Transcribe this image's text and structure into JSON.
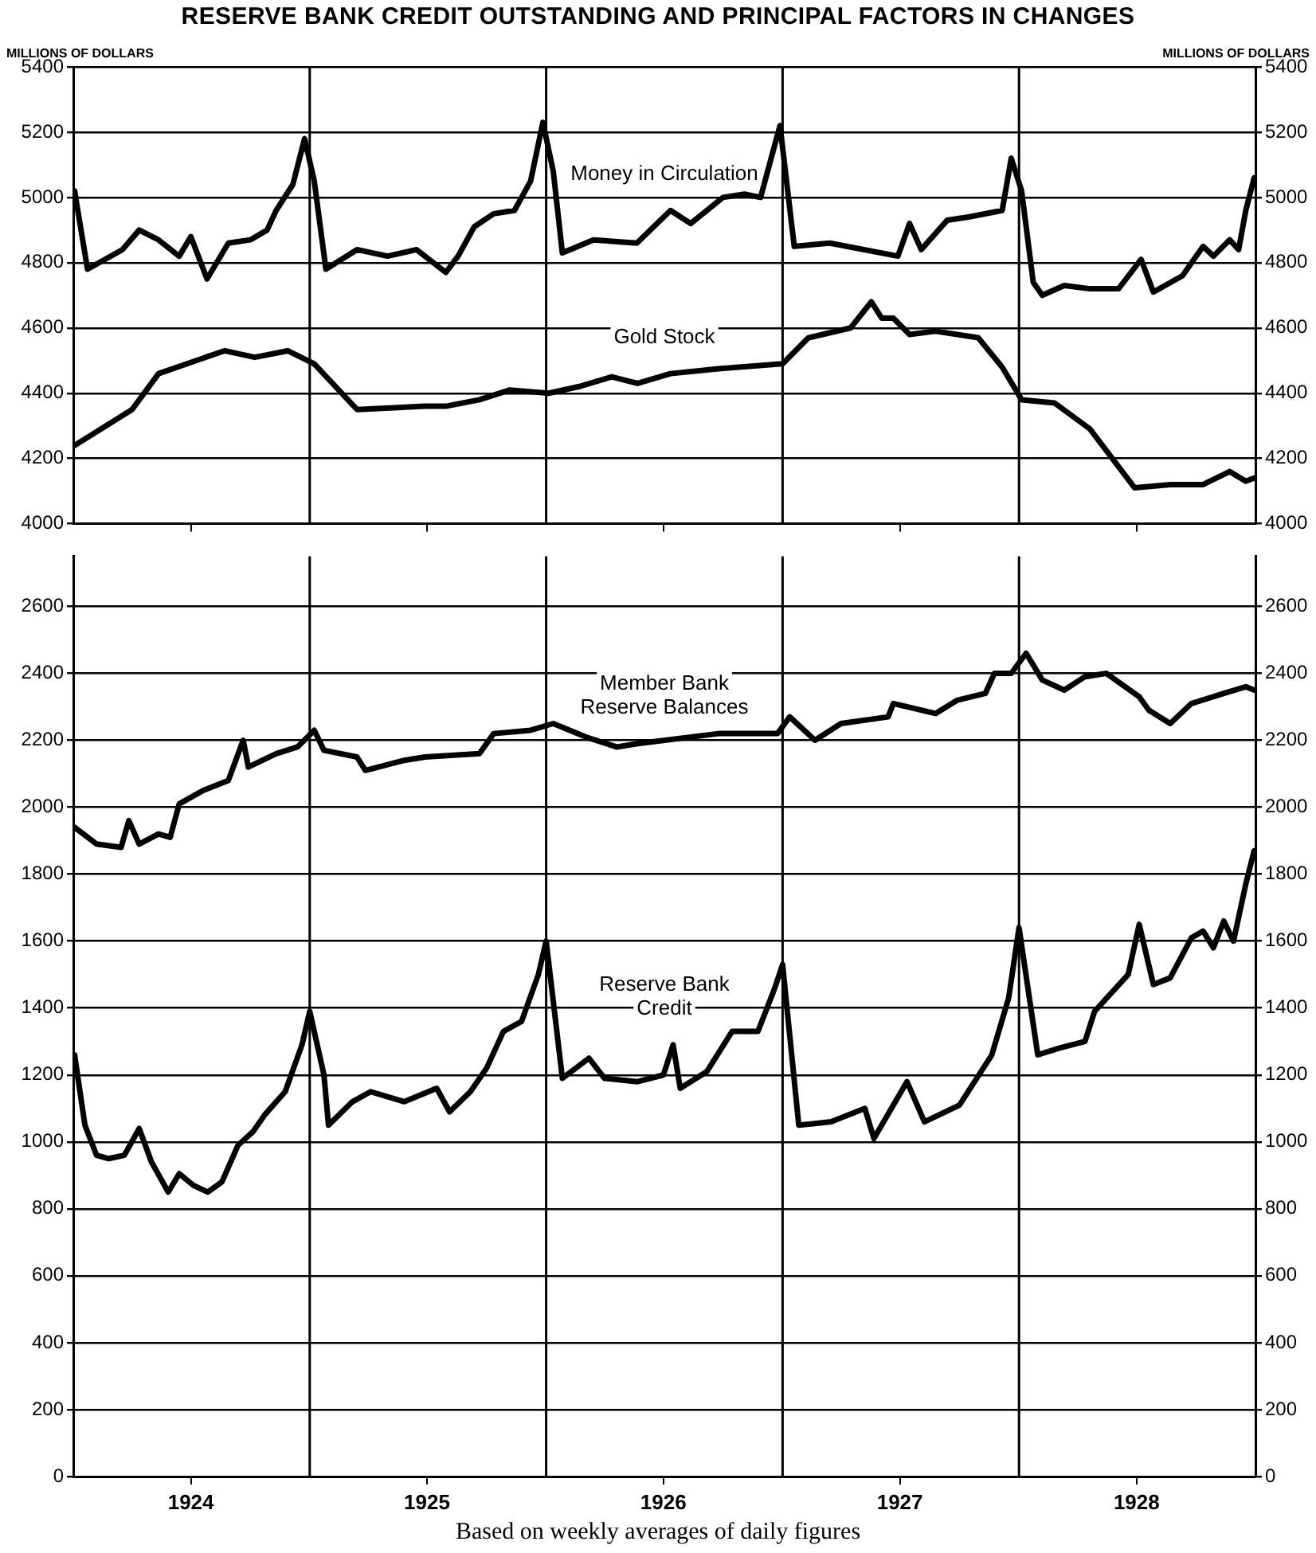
{
  "chart_data": [
    {
      "type": "line",
      "title": "RESERVE BANK CREDIT OUTSTANDING AND PRINCIPAL FACTORS IN CHANGES",
      "ylabel": "MILLIONS OF DOLLARS",
      "y2label": "MILLIONS OF DOLLARS",
      "xlim": [
        "1924-01-01",
        "1929-01-01"
      ],
      "xticks": [
        {
          "value": "1924-07-01",
          "label": null
        },
        {
          "value": "1925-07-01",
          "label": null
        },
        {
          "value": "1926-07-01",
          "label": null
        },
        {
          "value": "1927-07-01",
          "label": null
        },
        {
          "value": "1928-07-01",
          "label": null
        }
      ],
      "ylim": [
        4000,
        5400
      ],
      "yticks": [
        4000,
        4200,
        4400,
        4600,
        4800,
        5000,
        5200,
        5400
      ],
      "y2lim": [
        4000,
        5400
      ],
      "y2ticks": [
        4000,
        4200,
        4400,
        4600,
        4800,
        5000,
        5200,
        5400
      ],
      "tick_labels": "y",
      "grid": "y",
      "marker": "none",
      "line_style": "solid",
      "legend": false,
      "ref_lines": [
        {
          "axis": "x",
          "value": "1925-01-01",
          "color": "#000000"
        },
        {
          "axis": "x",
          "value": "1926-01-01",
          "color": "#000000"
        },
        {
          "axis": "x",
          "value": "1927-01-01",
          "color": "#000000"
        },
        {
          "axis": "x",
          "value": "1928-01-01",
          "color": "#000000"
        }
      ],
      "series": [
        {
          "name": "Money in Circulation",
          "color": "#000000",
          "x": [
            "1924-01-03",
            "1924-01-23",
            "1924-03-17",
            "1924-04-12",
            "1924-05-12",
            "1924-06-13",
            "1924-07-01",
            "1924-07-26",
            "1924-08-28",
            "1924-10-01",
            "1924-10-27",
            "1924-11-10",
            "1924-12-06",
            "1924-12-24",
            "1925-01-08",
            "1925-01-26",
            "1925-03-15",
            "1925-05-01",
            "1925-06-15",
            "1925-07-30",
            "1925-08-18",
            "1925-09-12",
            "1925-10-12",
            "1925-11-13",
            "1925-12-08",
            "1925-12-27",
            "1926-01-12",
            "1926-01-26",
            "1926-03-15",
            "1926-05-21",
            "1926-07-12",
            "1926-08-12",
            "1926-10-01",
            "1926-11-03",
            "1926-11-28",
            "1926-12-28",
            "1927-01-19",
            "1927-03-15",
            "1927-06-28",
            "1927-07-16",
            "1927-08-03",
            "1927-09-12",
            "1927-10-15",
            "1927-12-06",
            "1927-12-20",
            "1928-01-05",
            "1928-01-23",
            "1928-02-06",
            "1928-03-11",
            "1928-04-20",
            "1928-06-03",
            "1928-07-08",
            "1928-07-27",
            "1928-09-10",
            "1928-10-12",
            "1928-10-28",
            "1928-11-22",
            "1928-12-06",
            "1928-12-17",
            "1928-12-30"
          ],
          "values": [
            5020,
            4780,
            4840,
            4900,
            4870,
            4820,
            4880,
            4750,
            4860,
            4870,
            4900,
            4960,
            5040,
            5180,
            5050,
            4780,
            4840,
            4820,
            4840,
            4770,
            4820,
            4910,
            4950,
            4960,
            5050,
            5230,
            5080,
            4830,
            4870,
            4860,
            4960,
            4920,
            5000,
            5010,
            5000,
            5220,
            4850,
            4860,
            4820,
            4920,
            4840,
            4930,
            4940,
            4960,
            5120,
            5020,
            4740,
            4700,
            4730,
            4720,
            4720,
            4810,
            4710,
            4760,
            4850,
            4820,
            4870,
            4840,
            4960,
            5060
          ]
        },
        {
          "name": "Gold Stock",
          "color": "#000000",
          "x": [
            "1924-01-03",
            "1924-04-01",
            "1924-05-12",
            "1924-08-22",
            "1924-10-08",
            "1924-11-28",
            "1925-01-08",
            "1925-03-15",
            "1925-06-28",
            "1925-07-30",
            "1925-09-20",
            "1925-11-06",
            "1926-01-05",
            "1926-02-20",
            "1926-04-12",
            "1926-05-22",
            "1926-07-12",
            "1926-09-24",
            "1927-01-01",
            "1927-02-10",
            "1927-04-16",
            "1927-05-18",
            "1927-06-03",
            "1927-06-21",
            "1927-07-16",
            "1927-08-25",
            "1927-10-30",
            "1927-12-06",
            "1928-01-05",
            "1928-02-25",
            "1928-04-20",
            "1928-06-28",
            "1928-08-22",
            "1928-10-12",
            "1928-11-22",
            "1928-12-17",
            "1928-12-30"
          ],
          "values": [
            4240,
            4350,
            4460,
            4530,
            4510,
            4530,
            4490,
            4350,
            4360,
            4360,
            4380,
            4410,
            4400,
            4420,
            4450,
            4430,
            4460,
            4475,
            4490,
            4570,
            4600,
            4680,
            4630,
            4630,
            4580,
            4590,
            4570,
            4480,
            4380,
            4370,
            4290,
            4110,
            4120,
            4120,
            4160,
            4130,
            4140
          ]
        }
      ]
    },
    {
      "type": "line",
      "xlim": [
        "1924-01-01",
        "1929-01-01"
      ],
      "xticks": [
        {
          "value": "1924-07-01",
          "label": "1924"
        },
        {
          "value": "1925-07-01",
          "label": "1925"
        },
        {
          "value": "1926-07-01",
          "label": "1926"
        },
        {
          "value": "1927-07-01",
          "label": "1927"
        },
        {
          "value": "1928-07-01",
          "label": "1928"
        }
      ],
      "ylim": [
        0,
        2750
      ],
      "yticks": [
        0,
        200,
        400,
        600,
        800,
        1000,
        1200,
        1400,
        1600,
        1800,
        2000,
        2200,
        2400,
        2600
      ],
      "y2lim": [
        0,
        2750
      ],
      "y2ticks": [
        0,
        200,
        400,
        600,
        800,
        1000,
        1200,
        1400,
        1600,
        1800,
        2000,
        2200,
        2400,
        2600
      ],
      "grid": "y",
      "marker": "none",
      "line_style": "solid",
      "legend": false,
      "annotations": [
        "Based on weekly averages of daily figures"
      ],
      "ref_lines": [
        {
          "axis": "x",
          "value": "1925-01-01",
          "color": "#000000"
        },
        {
          "axis": "x",
          "value": "1926-01-01",
          "color": "#000000"
        },
        {
          "axis": "x",
          "value": "1927-01-01",
          "color": "#000000"
        },
        {
          "axis": "x",
          "value": "1928-01-01",
          "color": "#000000"
        }
      ],
      "series": [
        {
          "name": "Member Bank Reserve Balances",
          "color": "#000000",
          "x": [
            "1924-01-03",
            "1924-02-06",
            "1924-03-15",
            "1924-03-27",
            "1924-04-12",
            "1924-05-12",
            "1924-05-30",
            "1924-06-13",
            "1924-07-20",
            "1924-08-28",
            "1924-09-20",
            "1924-09-28",
            "1924-11-10",
            "1924-12-13",
            "1925-01-08",
            "1925-01-23",
            "1925-03-15",
            "1925-03-28",
            "1925-05-27",
            "1925-06-28",
            "1925-09-20",
            "1925-10-12",
            "1925-12-08",
            "1926-01-12",
            "1926-03-03",
            "1926-04-20",
            "1926-05-22",
            "1926-09-24",
            "1926-12-24",
            "1927-01-12",
            "1927-02-20",
            "1927-04-01",
            "1927-06-13",
            "1927-06-21",
            "1927-08-25",
            "1927-09-28",
            "1927-11-10",
            "1927-11-24",
            "1927-12-20",
            "1928-01-12",
            "1928-02-06",
            "1928-03-11",
            "1928-04-12",
            "1928-05-15",
            "1928-07-05",
            "1928-07-20",
            "1928-08-22",
            "1928-09-24",
            "1928-11-13",
            "1928-12-17",
            "1928-12-30"
          ],
          "values": [
            1940,
            1890,
            1880,
            1960,
            1890,
            1920,
            1910,
            2010,
            2050,
            2080,
            2200,
            2120,
            2160,
            2180,
            2230,
            2170,
            2150,
            2110,
            2140,
            2150,
            2160,
            2220,
            2230,
            2250,
            2210,
            2180,
            2190,
            2220,
            2220,
            2270,
            2200,
            2250,
            2270,
            2310,
            2280,
            2320,
            2340,
            2400,
            2400,
            2460,
            2380,
            2350,
            2390,
            2400,
            2330,
            2290,
            2250,
            2310,
            2340,
            2360,
            2350
          ]
        },
        {
          "name": "Reserve Bank Credit",
          "color": "#000000",
          "x": [
            "1924-01-03",
            "1924-01-19",
            "1924-02-06",
            "1924-02-25",
            "1924-03-20",
            "1924-04-12",
            "1924-05-01",
            "1924-05-27",
            "1924-06-13",
            "1924-07-05",
            "1924-07-27",
            "1924-08-18",
            "1924-09-12",
            "1924-10-05",
            "1924-10-23",
            "1924-11-24",
            "1924-12-20",
            "1925-01-01",
            "1925-01-23",
            "1925-01-30",
            "1925-03-08",
            "1925-04-05",
            "1925-05-27",
            "1925-07-16",
            "1925-08-05",
            "1925-09-06",
            "1925-10-01",
            "1925-10-27",
            "1925-11-24",
            "1925-12-20",
            "1926-01-01",
            "1926-01-26",
            "1926-03-08",
            "1926-04-01",
            "1926-05-22",
            "1926-07-01",
            "1926-07-16",
            "1926-07-27",
            "1926-09-06",
            "1926-10-15",
            "1926-11-24",
            "1926-12-20",
            "1927-01-01",
            "1927-01-26",
            "1927-03-17",
            "1927-05-08",
            "1927-05-22",
            "1927-07-12",
            "1927-08-08",
            "1927-10-01",
            "1927-11-20",
            "1927-12-16",
            "1928-01-01",
            "1928-01-30",
            "1928-03-03",
            "1928-04-12",
            "1928-04-27",
            "1928-06-18",
            "1928-07-05",
            "1928-07-27",
            "1928-08-22",
            "1928-09-24",
            "1928-10-12",
            "1928-10-28",
            "1928-11-13",
            "1928-11-28",
            "1928-12-17",
            "1928-12-30"
          ],
          "values": [
            1260,
            1050,
            960,
            950,
            960,
            1040,
            940,
            850,
            905,
            870,
            850,
            880,
            990,
            1030,
            1080,
            1150,
            1290,
            1390,
            1200,
            1050,
            1120,
            1150,
            1120,
            1160,
            1090,
            1150,
            1220,
            1330,
            1360,
            1500,
            1600,
            1190,
            1250,
            1190,
            1180,
            1200,
            1290,
            1160,
            1210,
            1330,
            1330,
            1460,
            1530,
            1050,
            1060,
            1100,
            1010,
            1180,
            1060,
            1110,
            1260,
            1430,
            1640,
            1260,
            1280,
            1300,
            1390,
            1500,
            1650,
            1470,
            1490,
            1610,
            1630,
            1580,
            1660,
            1600,
            1770,
            1870
          ]
        }
      ]
    }
  ]
}
